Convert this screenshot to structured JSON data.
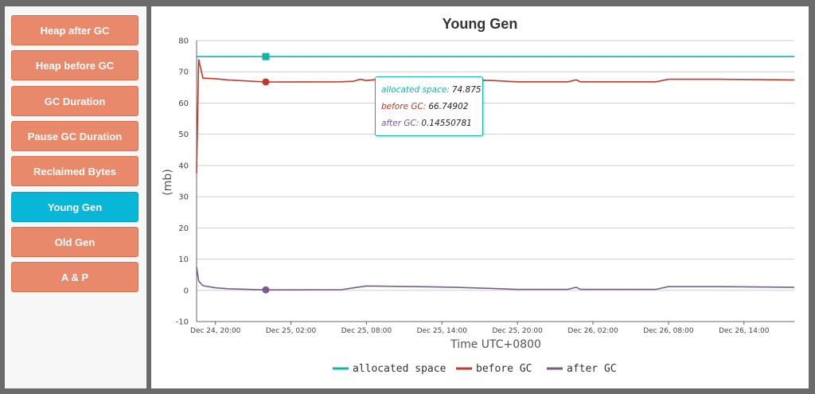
{
  "nav": {
    "items": [
      {
        "label": "Heap after GC",
        "active": false
      },
      {
        "label": "Heap before GC",
        "active": false
      },
      {
        "label": "GC Duration",
        "active": false
      },
      {
        "label": "Pause GC Duration",
        "active": false
      },
      {
        "label": "Reclaimed Bytes",
        "active": false
      },
      {
        "label": "Young Gen",
        "active": true
      },
      {
        "label": "Old Gen",
        "active": false
      },
      {
        "label": "A & P",
        "active": false
      }
    ]
  },
  "tooltip": {
    "rows": [
      {
        "label": "allocated space:",
        "value": "74.875",
        "color": "#12b5a6"
      },
      {
        "label": "before GC:",
        "value": "66.74902",
        "color": "#c0392b"
      },
      {
        "label": "after GC:",
        "value": "0.14550781",
        "color": "#7b5a8e"
      }
    ]
  },
  "chart_data": {
    "type": "line",
    "title": "Young Gen",
    "xlabel": "Time UTC+0800",
    "ylabel": "(mb)",
    "ylim": [
      -10,
      80
    ],
    "yticks": [
      -10,
      0,
      10,
      20,
      30,
      40,
      50,
      60,
      70,
      80
    ],
    "xlim": [
      "2023-12-24 18:30",
      "2023-12-26 18:00"
    ],
    "xticks": [
      {
        "t": "2023-12-24 20:00",
        "label": "Dec 24, 20:00"
      },
      {
        "t": "2023-12-25 02:00",
        "label": "Dec 25, 02:00"
      },
      {
        "t": "2023-12-25 08:00",
        "label": "Dec 25, 08:00"
      },
      {
        "t": "2023-12-25 14:00",
        "label": "Dec 25, 14:00"
      },
      {
        "t": "2023-12-25 20:00",
        "label": "Dec 25, 20:00"
      },
      {
        "t": "2023-12-26 02:00",
        "label": "Dec 26, 02:00"
      },
      {
        "t": "2023-12-26 08:00",
        "label": "Dec 26, 08:00"
      },
      {
        "t": "2023-12-26 14:00",
        "label": "Dec 26, 14:00"
      }
    ],
    "grid": true,
    "legend": "bottom",
    "hover_time": "2023-12-25 00:00",
    "series": [
      {
        "name": "allocated space",
        "color": "#12b5a6",
        "points": [
          [
            "2023-12-24 18:30",
            74.875
          ],
          [
            "2023-12-26 18:00",
            74.875
          ]
        ],
        "hover_value": 74.875
      },
      {
        "name": "before GC",
        "color": "#c0392b",
        "points": [
          [
            "2023-12-24 18:30",
            37.5
          ],
          [
            "2023-12-24 18:40",
            74
          ],
          [
            "2023-12-24 19:00",
            68
          ],
          [
            "2023-12-24 20:00",
            67.8
          ],
          [
            "2023-12-24 21:00",
            67.4
          ],
          [
            "2023-12-25 00:00",
            66.75
          ],
          [
            "2023-12-25 06:00",
            66.8
          ],
          [
            "2023-12-25 07:00",
            67
          ],
          [
            "2023-12-25 07:30",
            67.6
          ],
          [
            "2023-12-25 08:00",
            67.2
          ],
          [
            "2023-12-25 09:00",
            67.6
          ],
          [
            "2023-12-25 12:00",
            67.4
          ],
          [
            "2023-12-25 15:00",
            67.5
          ],
          [
            "2023-12-25 18:00",
            67.2
          ],
          [
            "2023-12-25 20:00",
            66.8
          ],
          [
            "2023-12-26 00:00",
            66.8
          ],
          [
            "2023-12-26 00:40",
            67.4
          ],
          [
            "2023-12-26 01:00",
            66.8
          ],
          [
            "2023-12-26 07:00",
            66.8
          ],
          [
            "2023-12-26 08:00",
            67.6
          ],
          [
            "2023-12-26 12:00",
            67.6
          ],
          [
            "2023-12-26 18:00",
            67.4
          ]
        ],
        "hover_value": 66.74902
      },
      {
        "name": "after GC",
        "color": "#7b5a8e",
        "points": [
          [
            "2023-12-24 18:30",
            7.5
          ],
          [
            "2023-12-24 18:40",
            3
          ],
          [
            "2023-12-24 19:00",
            1.5
          ],
          [
            "2023-12-24 20:00",
            0.8
          ],
          [
            "2023-12-24 21:00",
            0.5
          ],
          [
            "2023-12-25 00:00",
            0.15
          ],
          [
            "2023-12-25 06:00",
            0.2
          ],
          [
            "2023-12-25 07:00",
            0.8
          ],
          [
            "2023-12-25 08:00",
            1.4
          ],
          [
            "2023-12-25 12:00",
            1.2
          ],
          [
            "2023-12-25 15:00",
            1.0
          ],
          [
            "2023-12-25 18:00",
            0.6
          ],
          [
            "2023-12-25 20:00",
            0.3
          ],
          [
            "2023-12-26 00:00",
            0.3
          ],
          [
            "2023-12-26 00:40",
            1.0
          ],
          [
            "2023-12-26 01:00",
            0.3
          ],
          [
            "2023-12-26 07:00",
            0.3
          ],
          [
            "2023-12-26 08:00",
            1.2
          ],
          [
            "2023-12-26 12:00",
            1.2
          ],
          [
            "2023-12-26 18:00",
            1.0
          ]
        ],
        "hover_value": 0.14550781
      }
    ]
  }
}
